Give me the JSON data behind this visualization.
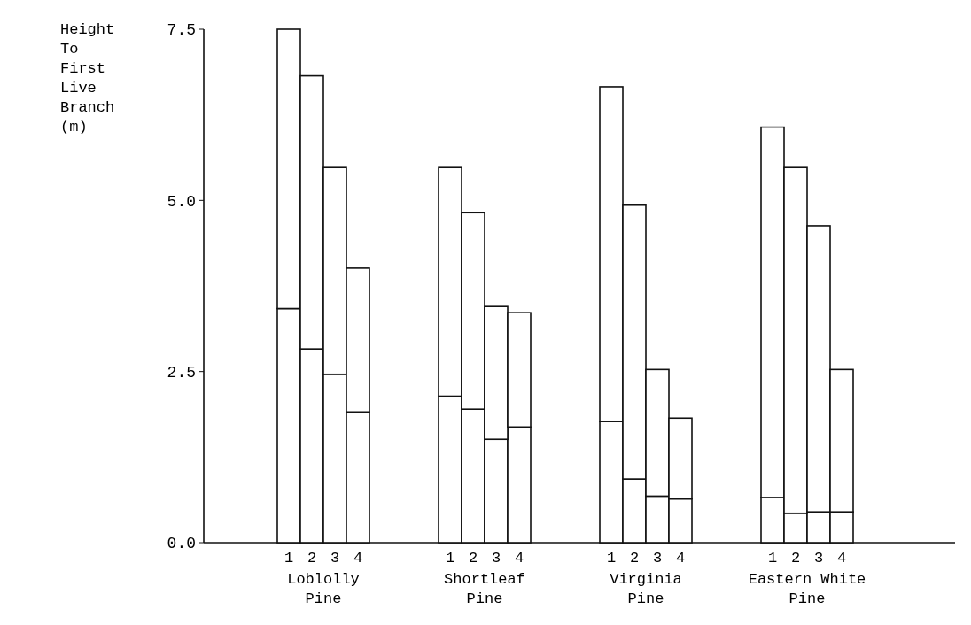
{
  "chart_data": {
    "type": "bar",
    "stacked": true,
    "ylabel": "Height To First Live Branch (m)",
    "categories": [
      "1",
      "2",
      "3",
      "4",
      null,
      null,
      null,
      "1",
      "2",
      "3",
      "4",
      null,
      null,
      null,
      "1",
      "2",
      "3",
      "4",
      null,
      null,
      null,
      "1",
      "2",
      "3",
      "4"
    ],
    "series": [
      {
        "color": "#ffffff",
        "values": [
          3.42,
          2.83,
          2.46,
          1.91,
          null,
          null,
          null,
          2.14,
          1.95,
          1.51,
          1.69,
          null,
          null,
          null,
          1.77,
          0.93,
          0.68,
          0.64,
          null,
          null,
          null,
          0.66,
          0.43,
          0.45,
          0.45
        ]
      },
      {
        "color": "#ffffff",
        "values": [
          4.08,
          3.99,
          3.02,
          2.1,
          null,
          null,
          null,
          3.34,
          2.87,
          1.94,
          1.67,
          null,
          null,
          null,
          4.89,
          4.0,
          1.85,
          1.18,
          null,
          null,
          null,
          5.41,
          5.05,
          4.18,
          2.08
        ]
      }
    ],
    "ylim": [
      0,
      7.5
    ],
    "yticks": [
      {
        "value": 0,
        "label": "0.0"
      },
      {
        "value": 2.5,
        "label": "2.5"
      },
      {
        "value": 5,
        "label": "5.0"
      },
      {
        "value": 7.5,
        "label": "7.5"
      }
    ],
    "annotations": [
      "Loblolly Pine",
      "Shortleaf Pine",
      "Virginia Pine",
      "Eastern White Pine"
    ]
  }
}
